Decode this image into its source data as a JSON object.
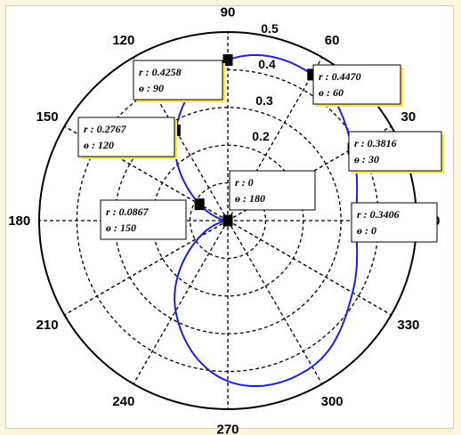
{
  "chart_data": {
    "type": "polar-line",
    "theta_ticks": [
      "90",
      "60",
      "30",
      "0",
      "330",
      "300",
      "270",
      "240",
      "210",
      "180",
      "150",
      "120"
    ],
    "theta_tick_angles": [
      90,
      60,
      30,
      0,
      330,
      300,
      270,
      240,
      210,
      180,
      150,
      120
    ],
    "r_ticks": [
      "0.2",
      "0.3",
      "0.4",
      "0.5"
    ],
    "r_tick_values": [
      0.2,
      0.3,
      0.4,
      0.5
    ],
    "rlim": [
      0,
      0.5
    ],
    "grid": true,
    "line_color": "#1f1fe0",
    "series": [
      {
        "theta_deg": [
          0,
          30,
          60,
          90,
          120,
          150,
          180,
          210,
          240,
          270,
          300,
          330
        ],
        "r": [
          0.3406,
          0.3816,
          0.447,
          0.4258,
          0.2767,
          0.0867,
          0,
          0.0867,
          0.2767,
          0.4258,
          0.447,
          0.3816
        ]
      }
    ],
    "annotations": [
      {
        "r": "0.3406",
        "theta": "0"
      },
      {
        "r": "0.3816",
        "theta": "30"
      },
      {
        "r": "0.4470",
        "theta": "60"
      },
      {
        "r": "0.4258",
        "theta": "90"
      },
      {
        "r": "0.2767",
        "theta": "120"
      },
      {
        "r": "0.0867",
        "theta": "150"
      },
      {
        "r": "0",
        "theta": "180"
      }
    ],
    "annotation_labels": {
      "r_prefix": "r :",
      "theta_prefix": "ɵ :"
    }
  }
}
